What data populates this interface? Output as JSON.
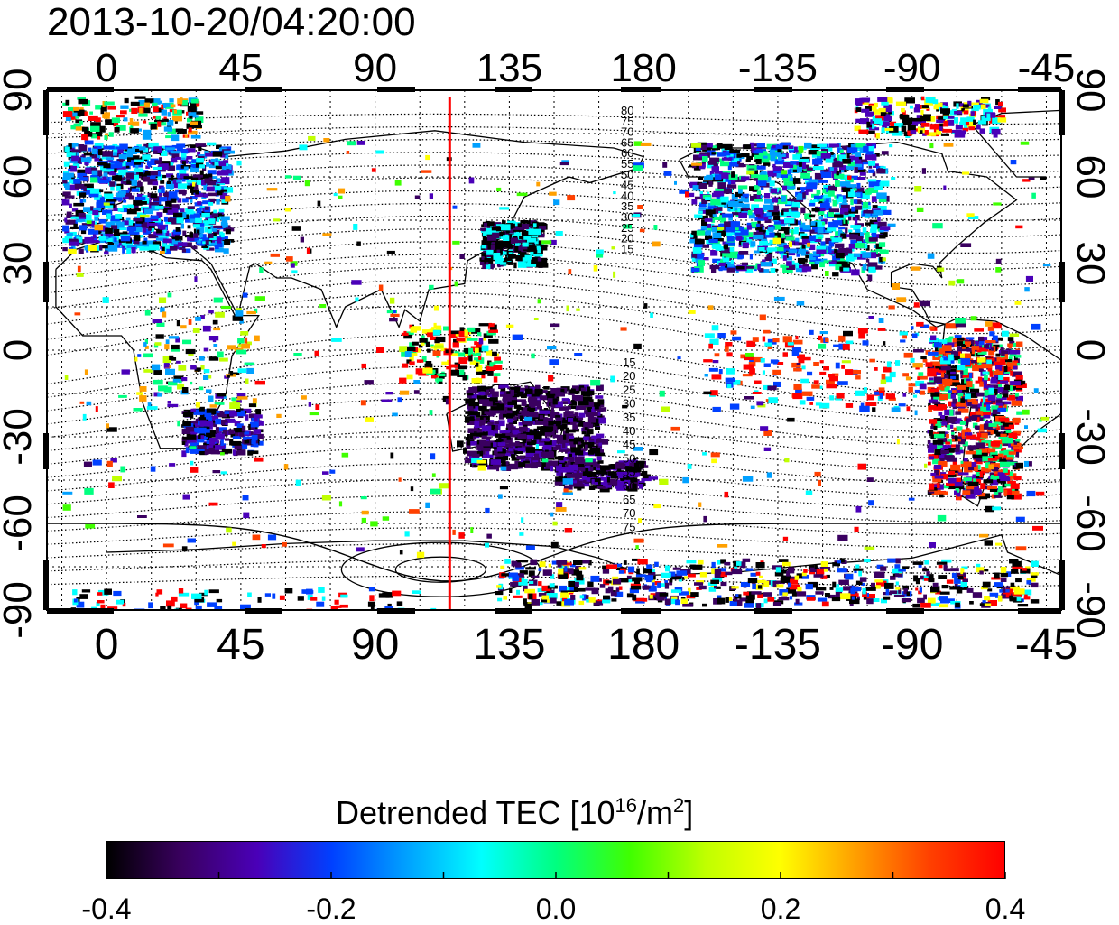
{
  "timestamp": "2013-10-20/04:20:00",
  "map": {
    "top_lon_labels": [
      "0",
      "45",
      "90",
      "135",
      "180",
      "-135",
      "-90",
      "-45"
    ],
    "bottom_lon_labels": [
      "0",
      "45",
      "90",
      "135",
      "180",
      "-135",
      "-90",
      "-45"
    ],
    "left_lat_labels": [
      "90",
      "60",
      "30",
      "0",
      "-30",
      "-60",
      "-90"
    ],
    "right_lat_labels": [
      "90",
      "60",
      "30",
      "0",
      "-30",
      "-60",
      "-90"
    ],
    "lon_range": [
      -20,
      320
    ],
    "lat_range": [
      -90,
      90
    ],
    "marker_line_lon": 115,
    "marker_line_color": "#ff0000",
    "contour_labels_north": [
      "80",
      "75",
      "70",
      "65",
      "60",
      "55",
      "50",
      "45",
      "40",
      "35",
      "30",
      "25",
      "20",
      "15"
    ],
    "contour_labels_south": [
      "15",
      "20",
      "25",
      "30",
      "35",
      "40",
      "45",
      "50",
      "55",
      "60",
      "65",
      "70",
      "75"
    ]
  },
  "colorbar": {
    "title_main": "Detrended TEC  [10",
    "title_exp1": "16",
    "title_mid": "/m",
    "title_exp2": "2",
    "title_end": "]",
    "min": -0.4,
    "max": 0.4,
    "tick_labels": [
      "-0.4",
      "-0.2",
      "0.0",
      "0.2",
      "0.4"
    ],
    "colors": [
      "#000000",
      "#3a0060",
      "#4a00b8",
      "#0040ff",
      "#00a0ff",
      "#00ffff",
      "#00ff80",
      "#40ff00",
      "#c0ff00",
      "#ffff00",
      "#ffa000",
      "#ff4000",
      "#ff0000"
    ]
  }
}
